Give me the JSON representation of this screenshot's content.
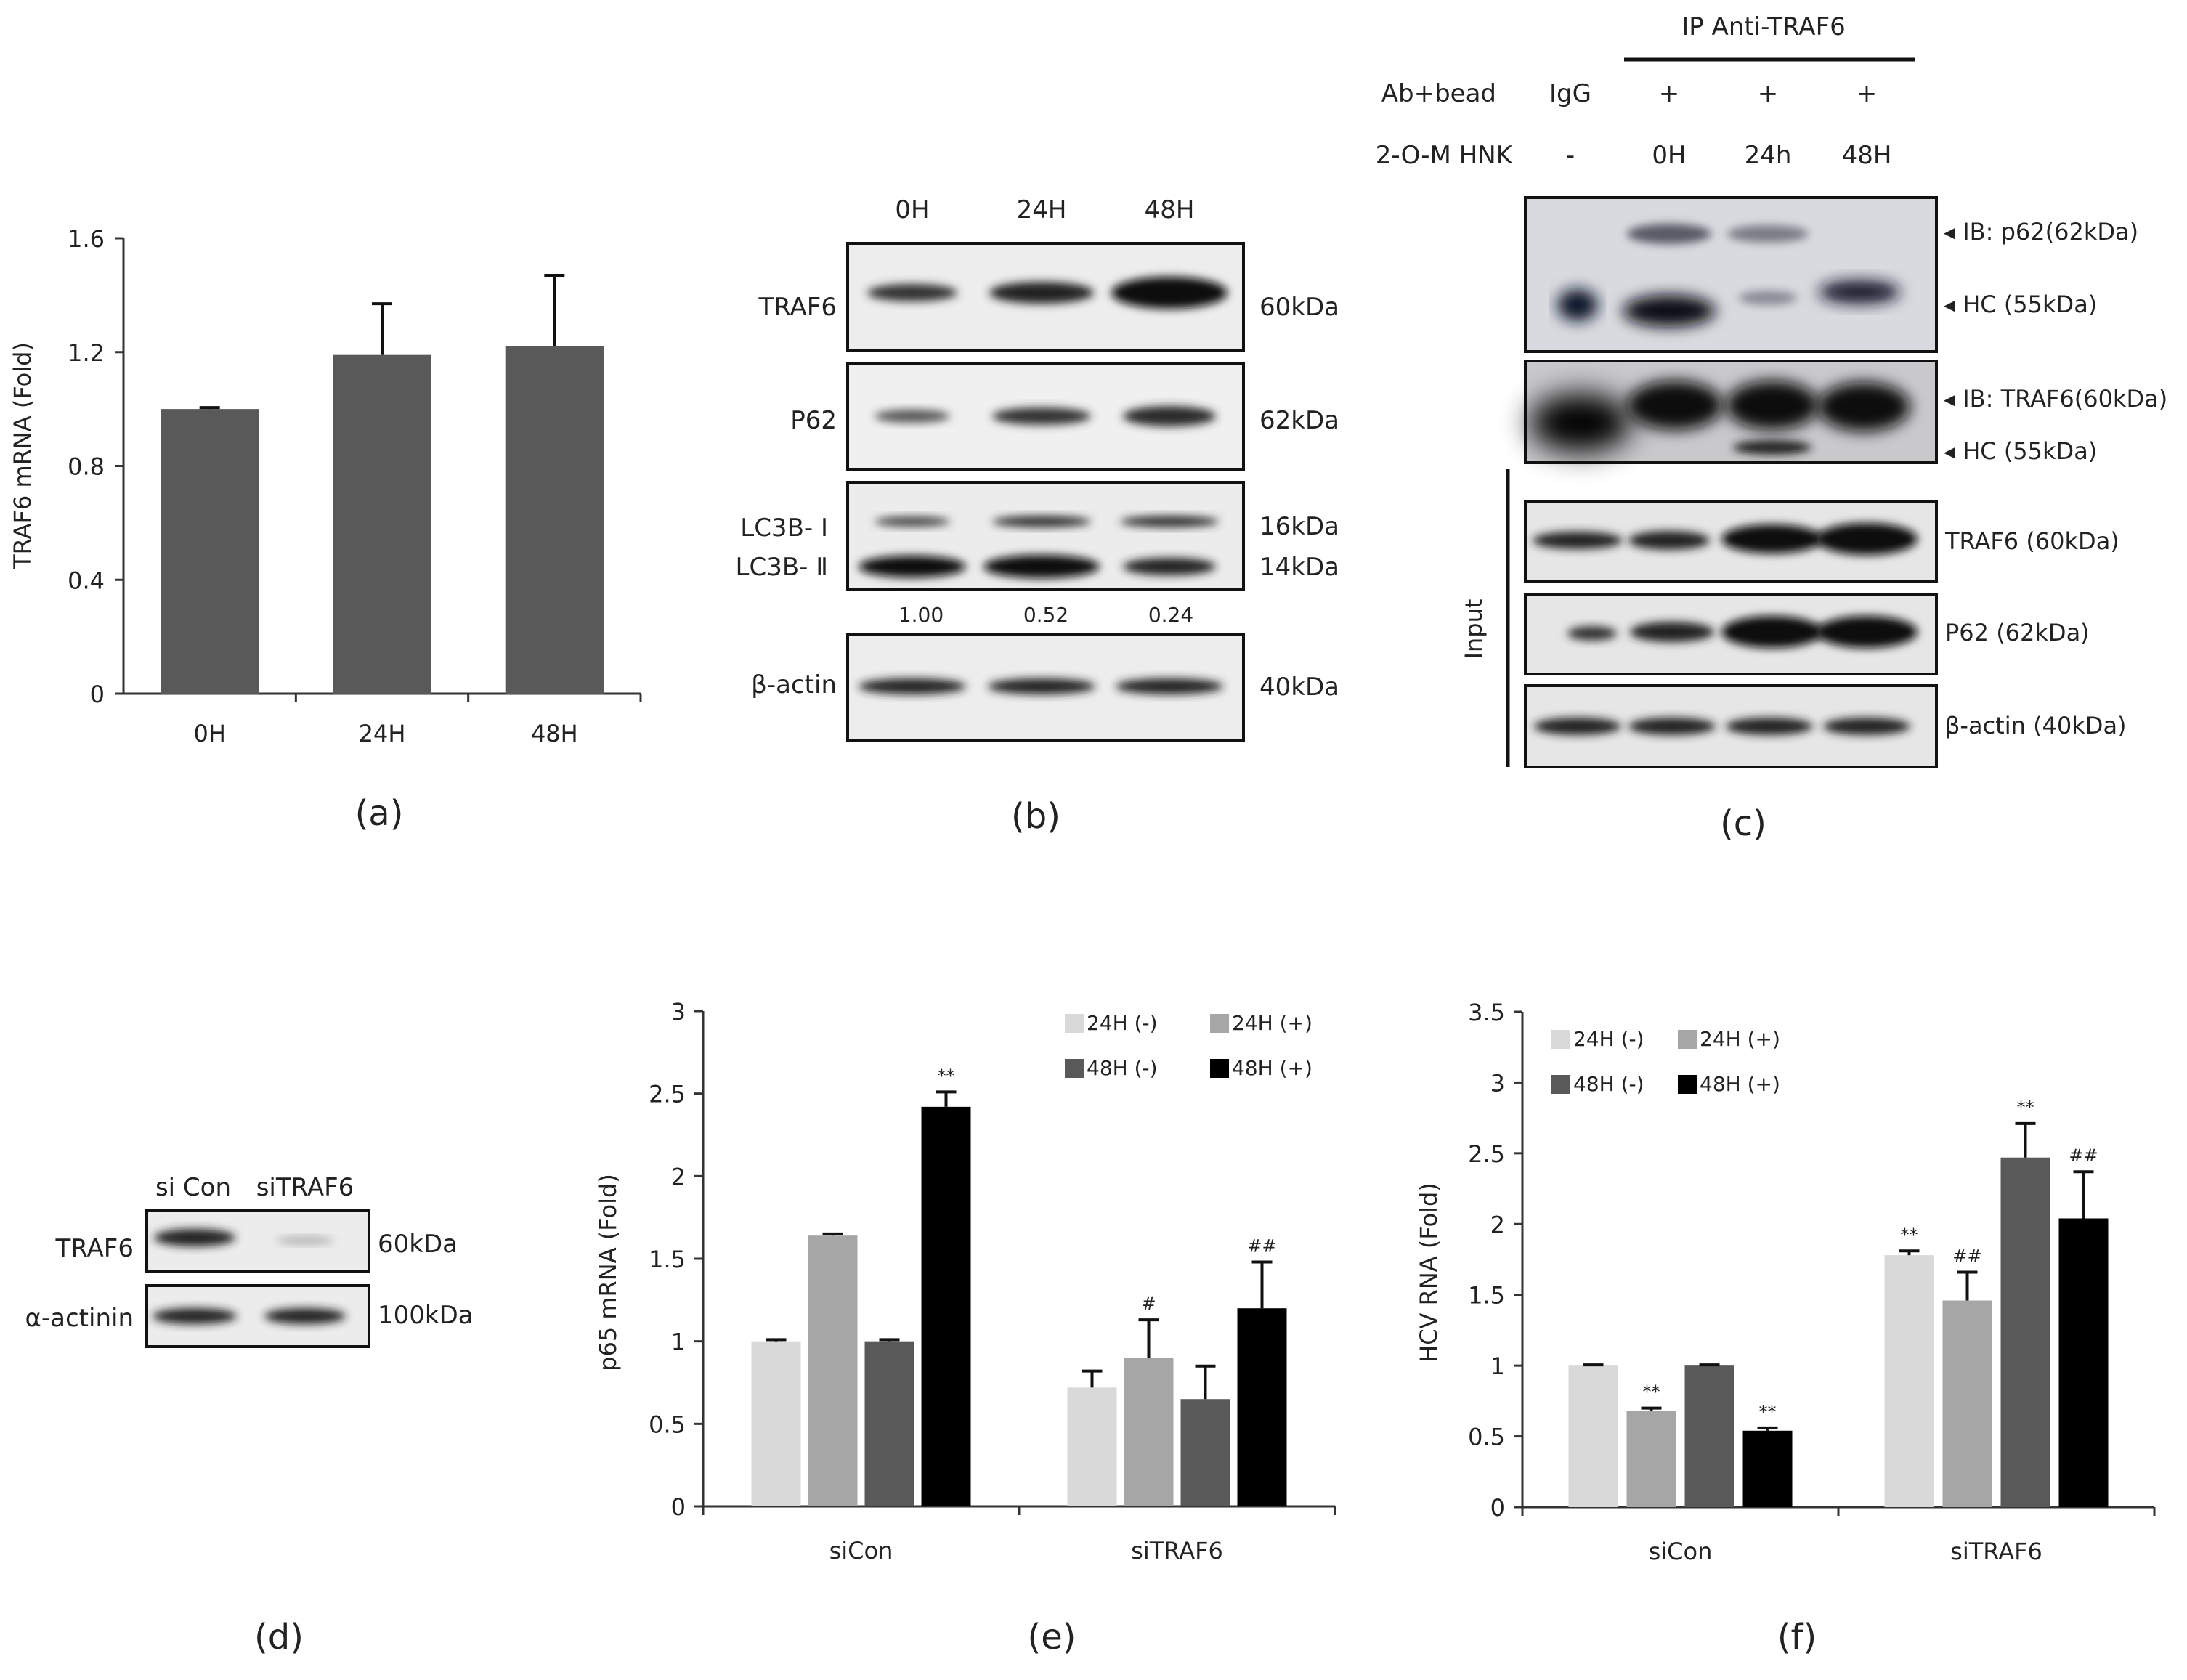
{
  "chart_data": [
    {
      "panel": "(a)",
      "type": "bar",
      "ylabel": "TRAF6 mRNA (Fold)",
      "categories": [
        "0H",
        "24H",
        "48H"
      ],
      "values": [
        1.0,
        1.19,
        1.22
      ],
      "errors": [
        0.005,
        0.18,
        0.25
      ],
      "ylim": [
        0,
        1.6
      ],
      "yticks": [
        "0",
        "0.4",
        "0.8",
        "1.2",
        "1.6"
      ],
      "bar_color": "#595959"
    },
    {
      "panel": "(e)",
      "type": "bar",
      "ylabel": "p65 mRNA (Fold)",
      "categories": [
        "siCon",
        "siTRAF6"
      ],
      "ylim": [
        0,
        3
      ],
      "yticks": [
        "0",
        "0.5",
        "1",
        "1.5",
        "2",
        "2.5",
        "3"
      ],
      "legend_position": "top-right",
      "series": [
        {
          "name": "24H (-)",
          "color": "#d9d9d9",
          "values": [
            1.0,
            0.72
          ],
          "errors": [
            0.01,
            0.1
          ],
          "marks": [
            "",
            ""
          ]
        },
        {
          "name": "24H (+)",
          "color": "#a6a6a6",
          "values": [
            1.64,
            0.9
          ],
          "errors": [
            0.01,
            0.23
          ],
          "marks": [
            "",
            "#"
          ]
        },
        {
          "name": "48H (-)",
          "color": "#595959",
          "values": [
            1.0,
            0.65
          ],
          "errors": [
            0.01,
            0.2
          ],
          "marks": [
            "",
            ""
          ]
        },
        {
          "name": "48H (+)",
          "color": "#000000",
          "values": [
            2.42,
            1.2
          ],
          "errors": [
            0.09,
            0.28
          ],
          "marks": [
            "**",
            "##"
          ]
        }
      ]
    },
    {
      "panel": "(f)",
      "type": "bar",
      "ylabel": "HCV RNA (Fold)",
      "categories": [
        "siCon",
        "siTRAF6"
      ],
      "ylim": [
        0,
        3.5
      ],
      "yticks": [
        "0",
        "0.5",
        "1",
        "1.5",
        "2",
        "2.5",
        "3",
        "3.5"
      ],
      "legend_position": "top-left",
      "series": [
        {
          "name": "24H (-)",
          "color": "#d9d9d9",
          "values": [
            1.0,
            1.78
          ],
          "errors": [
            0.005,
            0.03
          ],
          "marks": [
            "",
            "**"
          ]
        },
        {
          "name": "24H (+)",
          "color": "#a6a6a6",
          "values": [
            0.68,
            1.46
          ],
          "errors": [
            0.02,
            0.2
          ],
          "marks": [
            "**",
            "##"
          ]
        },
        {
          "name": "48H (-)",
          "color": "#595959",
          "values": [
            1.0,
            2.47
          ],
          "errors": [
            0.005,
            0.24
          ],
          "marks": [
            "",
            "**"
          ]
        },
        {
          "name": "48H (+)",
          "color": "#000000",
          "values": [
            0.54,
            2.04
          ],
          "errors": [
            0.02,
            0.33
          ],
          "marks": [
            "**",
            "##"
          ]
        }
      ]
    }
  ],
  "blot_b": {
    "lanes": [
      "0H",
      "24H",
      "48H"
    ],
    "rows": [
      {
        "label": "TRAF6",
        "size": "60kDa"
      },
      {
        "label": "P62",
        "size": "62kDa"
      },
      {
        "label": "LC3B- Ⅰ",
        "label2": "LC3B- Ⅱ",
        "size": "16kDa",
        "size2": "14kDa"
      },
      {
        "label": "β-actin",
        "size": "40kDa"
      }
    ],
    "ratios": [
      "1.00",
      "0.52",
      "0.24"
    ]
  },
  "blot_c": {
    "ip_title": "IP Anti-TRAF6",
    "row1_label": "Ab+bead",
    "row1_values": [
      "IgG",
      "+",
      "+",
      "+"
    ],
    "row2_label": "2-O-M HNK",
    "row2_values": [
      "-",
      "0H",
      "24h",
      "48H"
    ],
    "ip_labels": [
      "IB: p62(62kDa)",
      "HC (55kDa)",
      "IB: TRAF6(60kDa)",
      "HC (55kDa)"
    ],
    "input_label": "Input",
    "input_rows": [
      "TRAF6 (60kDa)",
      "P62 (62kDa)",
      "β-actin (40kDa)"
    ]
  },
  "blot_d": {
    "lanes": [
      "si Con",
      "siTRAF6"
    ],
    "rows": [
      {
        "label": "TRAF6",
        "size": "60kDa"
      },
      {
        "label": "α-actinin",
        "size": "100kDa"
      }
    ]
  },
  "panel_labels": [
    "(a)",
    "(b)",
    "(c)",
    "(d)",
    "(e)",
    "(f)"
  ]
}
